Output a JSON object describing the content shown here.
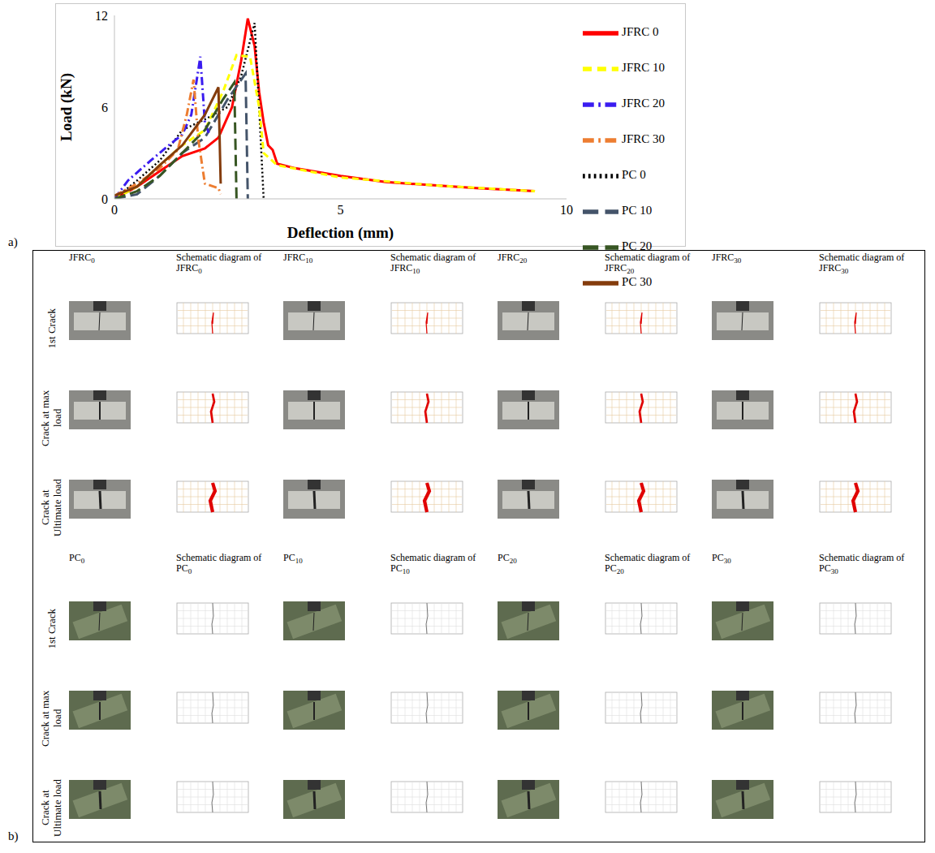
{
  "panels": [
    "a)",
    "b)"
  ],
  "chart_data": {
    "type": "line",
    "x_label": "Deflection (mm)",
    "y_label": "Load (kN)",
    "xlim": [
      0,
      10
    ],
    "xticks": [
      0,
      5,
      10
    ],
    "ylim": [
      0,
      12
    ],
    "yticks": [
      0,
      6,
      12
    ],
    "grid": false,
    "legend": "right",
    "series": [
      {
        "name": "JFRC 0",
        "color": "#ff0000",
        "line_style": "solid",
        "x": [
          0,
          0.5,
          1,
          1.5,
          2,
          2.3,
          2.6,
          2.8,
          2.95,
          3.1,
          3.2,
          3.3,
          3.4,
          3.5,
          3.6,
          4,
          5,
          6,
          7,
          8,
          9.3
        ],
        "values": [
          0,
          0.8,
          1.8,
          2.8,
          3.3,
          4,
          6,
          9,
          11.8,
          10,
          7,
          5,
          3.5,
          3.2,
          2.3,
          2,
          1.5,
          1.1,
          0.9,
          0.7,
          0.5
        ]
      },
      {
        "name": "PC 0",
        "color": "#000000",
        "line_style": "dotted",
        "x": [
          0,
          0.5,
          1,
          1.5,
          2,
          2.5,
          2.8,
          3.1,
          3.2,
          3.3
        ],
        "values": [
          0,
          1.2,
          2.5,
          4.5,
          5.2,
          6,
          8,
          11.5,
          6,
          0
        ]
      },
      {
        "name": "JFRC 10",
        "color": "#ffff00",
        "line_style": "dashed",
        "x": [
          0,
          0.5,
          1,
          1.5,
          2,
          2.4,
          2.7,
          3,
          3.2,
          3.3,
          3.6,
          5,
          7,
          9.3
        ],
        "values": [
          0,
          0.8,
          2.2,
          3.5,
          4.5,
          7,
          9.4,
          9.3,
          6,
          3,
          2.2,
          1.4,
          0.9,
          0.5
        ]
      },
      {
        "name": "PC 10",
        "color": "#44546a",
        "line_style": "longdash",
        "x": [
          0,
          0.5,
          1,
          1.5,
          2,
          2.5,
          2.9,
          2.95
        ],
        "values": [
          0,
          0.3,
          1.5,
          3,
          4,
          6.5,
          8.2,
          0
        ]
      },
      {
        "name": "JFRC 20",
        "color": "#3a1cf0",
        "line_style": "dashdot",
        "x": [
          0,
          0.3,
          0.8,
          1.2,
          1.5,
          1.7,
          1.9,
          2,
          2.1
        ],
        "values": [
          0,
          1.2,
          2.5,
          3.5,
          4.2,
          5.5,
          9.3,
          5,
          4.2
        ]
      },
      {
        "name": "PC 20",
        "color": "#375623",
        "line_style": "longdash",
        "x": [
          0,
          0.5,
          1,
          1.5,
          2,
          2.4,
          2.65,
          2.7
        ],
        "values": [
          0,
          0.5,
          1.5,
          3,
          4.5,
          6.5,
          7.6,
          0
        ]
      },
      {
        "name": "JFRC 30",
        "color": "#ed7d31",
        "line_style": "dashdot",
        "x": [
          0,
          0.5,
          1,
          1.4,
          1.6,
          1.75,
          1.85,
          2,
          2.3,
          2.35
        ],
        "values": [
          0.2,
          1,
          2,
          3.2,
          5.5,
          7.8,
          4,
          1,
          0.7,
          0.3
        ]
      },
      {
        "name": "PC 30",
        "color": "#843c0c",
        "line_style": "solid",
        "x": [
          0,
          0.5,
          1,
          1.5,
          2,
          2.3,
          2.35
        ],
        "values": [
          0.2,
          0.8,
          2.2,
          3.5,
          5.5,
          7.3,
          1
        ]
      }
    ]
  },
  "figure_b": {
    "groups": [
      {
        "columns": [
          "JFRC0",
          "Schematic diagram of JFRC0",
          "JFRC10",
          "Schematic diagram of JFRC10",
          "JFRC20",
          "Schematic diagram of JFRC20",
          "JFRC30",
          "Schematic diagram of JFRC30"
        ],
        "rows": [
          "1st Crack",
          "Crack at max load",
          "Crack at Ultimate load"
        ]
      },
      {
        "columns": [
          "PC0",
          "Schematic diagram of PC0",
          "PC10",
          "Schematic diagram of PC10",
          "PC20",
          "Schematic diagram of PC20",
          "PC30",
          "Schematic diagram of PC30"
        ],
        "rows": [
          "1st Crack",
          "Crack at max load",
          "Crack at Ultimate load"
        ]
      }
    ]
  }
}
